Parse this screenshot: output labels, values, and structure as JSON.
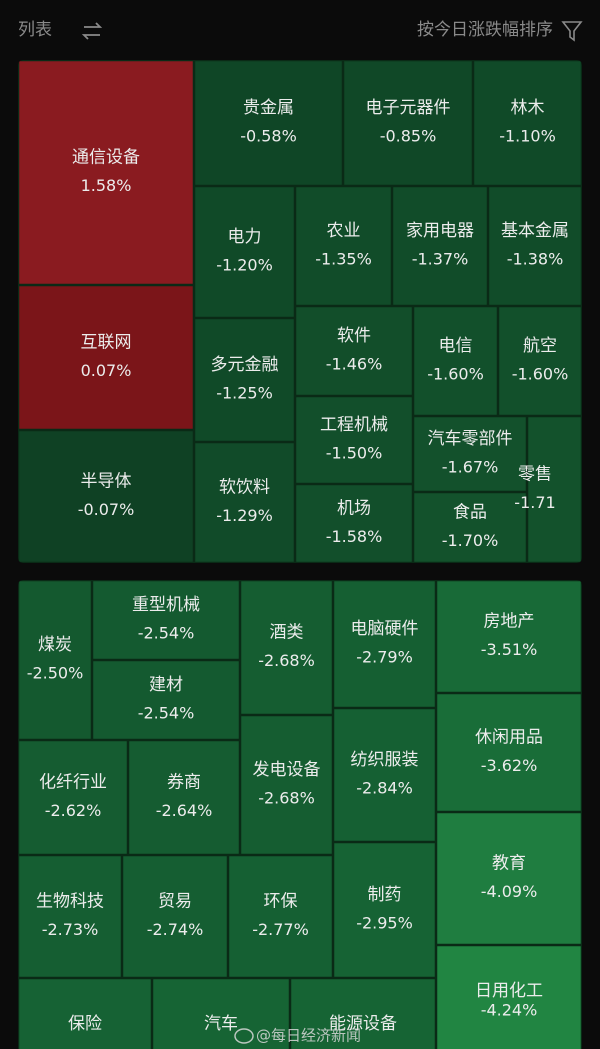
{
  "header": {
    "view": "列表",
    "sort": "按今日涨跌幅排序"
  },
  "top_panel": {
    "tiles": [
      {
        "name": "通信设备",
        "change": "1.58%"
      },
      {
        "name": "互联网",
        "change": "0.07%"
      },
      {
        "name": "半导体",
        "change": "-0.07%"
      },
      {
        "name": "贵金属",
        "change": "-0.58%"
      },
      {
        "name": "电子元器件",
        "change": "-0.85%"
      },
      {
        "name": "林木",
        "change": "-1.10%"
      },
      {
        "name": "电力",
        "change": "-1.20%"
      },
      {
        "name": "农业",
        "change": "-1.35%"
      },
      {
        "name": "家用电器",
        "change": "-1.37%"
      },
      {
        "name": "基本金属",
        "change": "-1.38%"
      },
      {
        "name": "多元金融",
        "change": "-1.25%"
      },
      {
        "name": "软饮料",
        "change": "-1.29%"
      },
      {
        "name": "软件",
        "change": "-1.46%"
      },
      {
        "name": "电信",
        "change": "-1.60%"
      },
      {
        "name": "航空",
        "change": "-1.60%"
      },
      {
        "name": "工程机械",
        "change": "-1.50%"
      },
      {
        "name": "机场",
        "change": "-1.58%"
      },
      {
        "name": "汽车零部件",
        "change": "-1.67%"
      },
      {
        "name": "食品",
        "change": "-1.70%"
      },
      {
        "name": "零售",
        "change": "-1.71"
      }
    ]
  },
  "bottom_panel": {
    "tiles": [
      {
        "name": "煤炭",
        "change": "-2.50%"
      },
      {
        "name": "重型机械",
        "change": "-2.54%"
      },
      {
        "name": "建材",
        "change": "-2.54%"
      },
      {
        "name": "酒类",
        "change": "-2.68%"
      },
      {
        "name": "发电设备",
        "change": "-2.68%"
      },
      {
        "name": "电脑硬件",
        "change": "-2.79%"
      },
      {
        "name": "纺织服装",
        "change": "-2.84%"
      },
      {
        "name": "房地产",
        "change": "-3.51%"
      },
      {
        "name": "休闲用品",
        "change": "-3.62%"
      },
      {
        "name": "教育",
        "change": "-4.09%"
      },
      {
        "name": "日用化工",
        "change": "-4.24%"
      },
      {
        "name": "化纤行业",
        "change": "-2.62%"
      },
      {
        "name": "券商",
        "change": "-2.64%"
      },
      {
        "name": "生物科技",
        "change": "-2.73%"
      },
      {
        "name": "贸易",
        "change": "-2.74%"
      },
      {
        "name": "环保",
        "change": "-2.77%"
      },
      {
        "name": "制药",
        "change": "-2.95%"
      },
      {
        "name": "保险"
      },
      {
        "name": "汽车"
      },
      {
        "name": "能源设备"
      }
    ]
  },
  "watermark": "@每日经济新闻"
}
